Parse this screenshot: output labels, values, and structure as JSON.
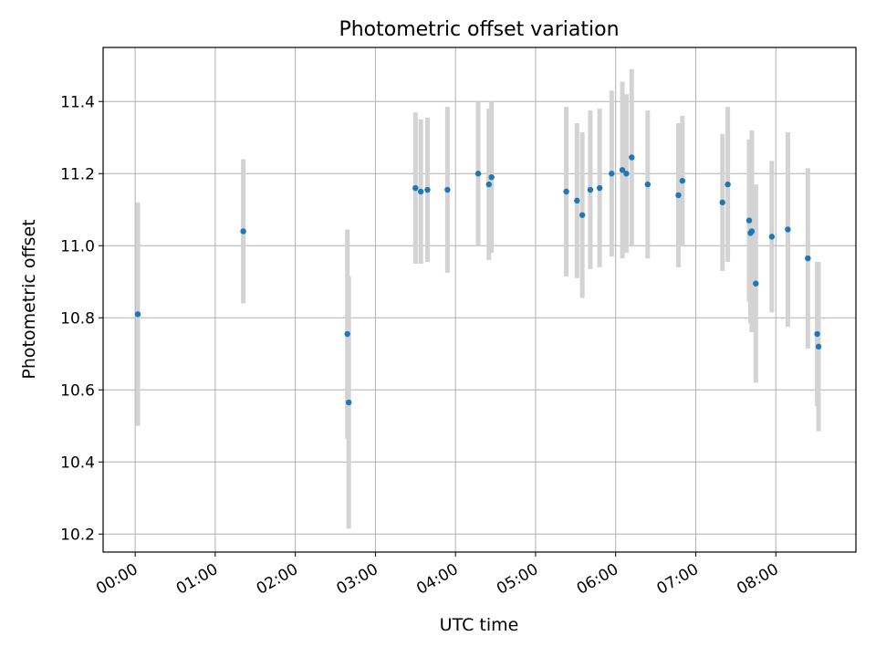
{
  "chart_data": {
    "type": "scatter",
    "title": "Photometric offset variation",
    "xlabel": "UTC time",
    "ylabel": "Photometric offset",
    "xlim": [
      "23:36",
      "09:00"
    ],
    "ylim": [
      10.15,
      11.55
    ],
    "grid": true,
    "x_ticks": [
      "00:00",
      "01:00",
      "02:00",
      "03:00",
      "04:00",
      "05:00",
      "06:00",
      "07:00",
      "08:00"
    ],
    "y_ticks": [
      10.2,
      10.4,
      10.6,
      10.8,
      11.0,
      11.2,
      11.4
    ],
    "colors": {
      "marker": "#1f77b4",
      "errorbar": "#d3d3d3",
      "grid": "#b0b0b0"
    },
    "series": [
      {
        "points": [
          {
            "x": "00:02",
            "y": 10.81,
            "yerr": 0.31
          },
          {
            "x": "01:21",
            "y": 11.04,
            "yerr": 0.2
          },
          {
            "x": "02:39",
            "y": 10.755,
            "yerr": 0.29
          },
          {
            "x": "02:40",
            "y": 10.565,
            "yerr": 0.35
          },
          {
            "x": "03:30",
            "y": 11.16,
            "yerr": 0.21
          },
          {
            "x": "03:34",
            "y": 11.15,
            "yerr": 0.2
          },
          {
            "x": "03:39",
            "y": 11.155,
            "yerr": 0.2
          },
          {
            "x": "03:54",
            "y": 11.155,
            "yerr": 0.23
          },
          {
            "x": "04:17",
            "y": 11.2,
            "yerr": 0.2
          },
          {
            "x": "04:25",
            "y": 11.17,
            "yerr": 0.21
          },
          {
            "x": "04:27",
            "y": 11.19,
            "yerr": 0.21
          },
          {
            "x": "05:23",
            "y": 11.15,
            "yerr": 0.235
          },
          {
            "x": "05:31",
            "y": 11.125,
            "yerr": 0.215
          },
          {
            "x": "05:35",
            "y": 11.085,
            "yerr": 0.23
          },
          {
            "x": "05:41",
            "y": 11.155,
            "yerr": 0.22
          },
          {
            "x": "05:48",
            "y": 11.16,
            "yerr": 0.22
          },
          {
            "x": "05:57",
            "y": 11.2,
            "yerr": 0.23
          },
          {
            "x": "06:05",
            "y": 11.21,
            "yerr": 0.245
          },
          {
            "x": "06:08",
            "y": 11.2,
            "yerr": 0.22
          },
          {
            "x": "06:12",
            "y": 11.245,
            "yerr": 0.245
          },
          {
            "x": "06:24",
            "y": 11.17,
            "yerr": 0.205
          },
          {
            "x": "06:47",
            "y": 11.14,
            "yerr": 0.2
          },
          {
            "x": "06:50",
            "y": 11.18,
            "yerr": 0.18
          },
          {
            "x": "07:20",
            "y": 11.12,
            "yerr": 0.19
          },
          {
            "x": "07:24",
            "y": 11.17,
            "yerr": 0.215
          },
          {
            "x": "07:40",
            "y": 11.07,
            "yerr": 0.225
          },
          {
            "x": "07:41",
            "y": 11.035,
            "yerr": 0.25
          },
          {
            "x": "07:42",
            "y": 11.04,
            "yerr": 0.28
          },
          {
            "x": "07:45",
            "y": 10.895,
            "yerr": 0.275
          },
          {
            "x": "07:57",
            "y": 11.025,
            "yerr": 0.21
          },
          {
            "x": "08:09",
            "y": 11.045,
            "yerr": 0.27
          },
          {
            "x": "08:24",
            "y": 10.965,
            "yerr": 0.25
          },
          {
            "x": "08:31",
            "y": 10.755,
            "yerr": 0.2
          },
          {
            "x": "08:32",
            "y": 10.72,
            "yerr": 0.235
          }
        ]
      }
    ]
  }
}
